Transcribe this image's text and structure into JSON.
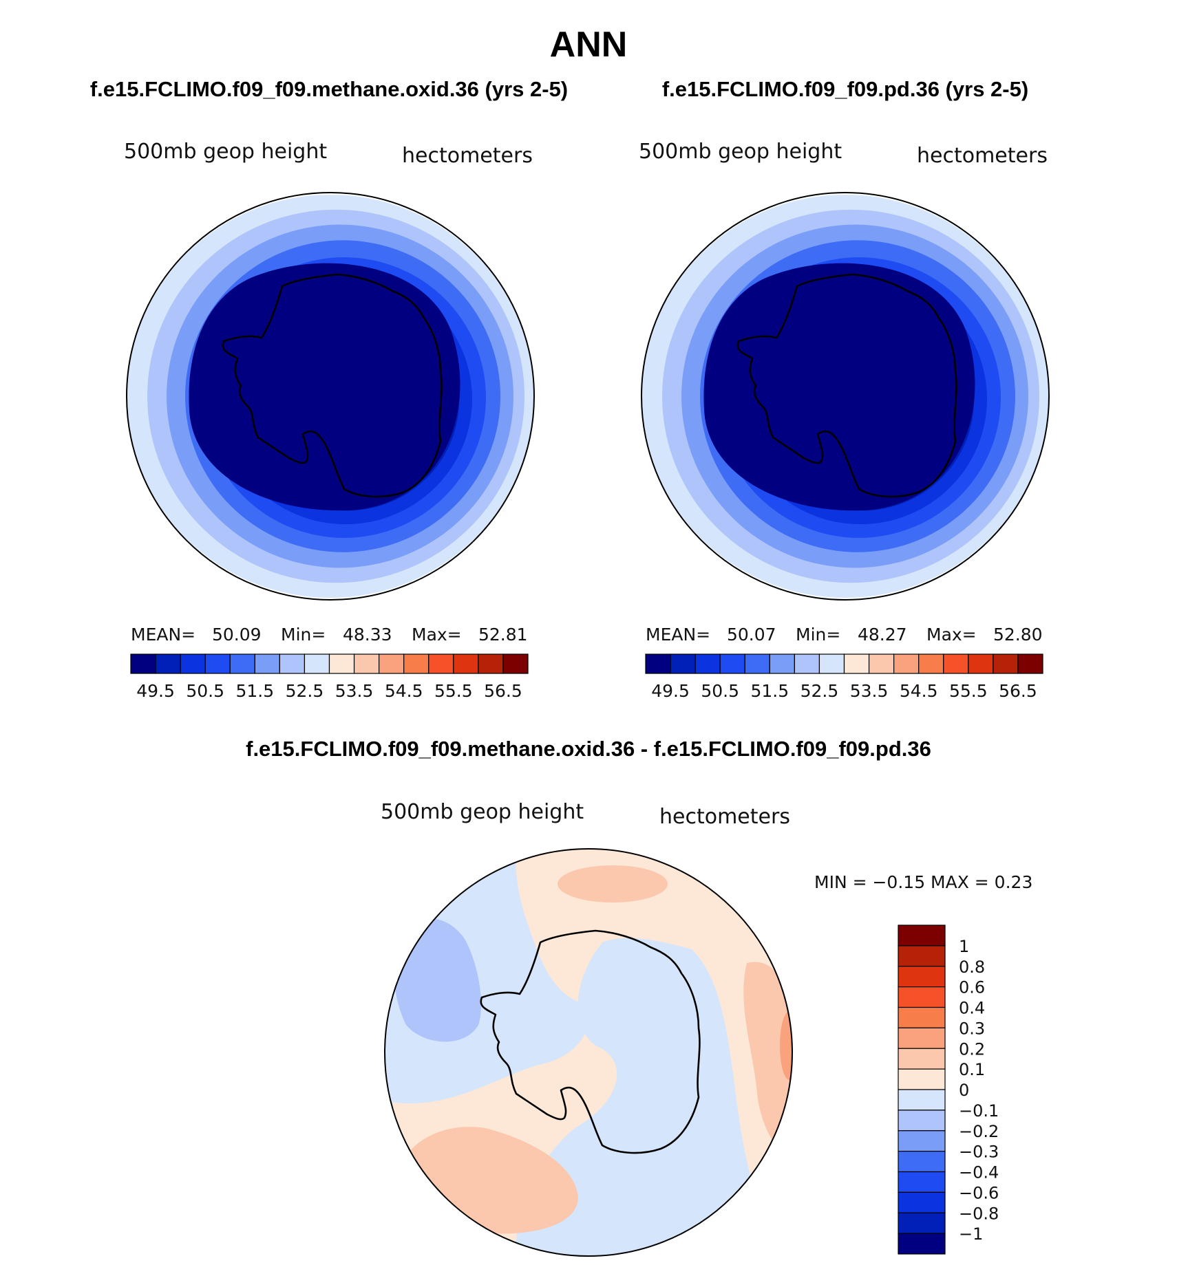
{
  "title": "ANN",
  "colors": {
    "levels": [
      "#000080",
      "#0020b8",
      "#0b33e0",
      "#1e4cf2",
      "#3e6cf4",
      "#7a9ef8",
      "#aec4fa",
      "#d5e5fb",
      "#fde8d8",
      "#fbc8ae",
      "#f9a27d",
      "#f77d4a",
      "#f6522a",
      "#de3410",
      "#b62208",
      "#7d0000"
    ]
  },
  "panels": [
    {
      "case_title": "f.e15.FCLIMO.f09_f09.methane.oxid.36 (yrs 2-5)",
      "variable": "500mb  geop  height",
      "units": "hectometers",
      "stats": {
        "mean_label": "MEAN=",
        "mean": "50.09",
        "min_label": "Min=",
        "min": "48.33",
        "max_label": "Max=",
        "max": "52.81"
      }
    },
    {
      "case_title": "f.e15.FCLIMO.f09_f09.pd.36 (yrs 2-5)",
      "variable": "500mb  geop  height",
      "units": "hectometers",
      "stats": {
        "mean_label": "MEAN=",
        "mean": "50.07",
        "min_label": "Min=",
        "min": "48.27",
        "max_label": "Max=",
        "max": "52.80"
      }
    }
  ],
  "colorbar_ticks": [
    "49.5",
    "50.5",
    "51.5",
    "52.5",
    "53.5",
    "54.5",
    "55.5",
    "56.5"
  ],
  "diff": {
    "title": "f.e15.FCLIMO.f09_f09.methane.oxid.36 - f.e15.FCLIMO.f09_f09.pd.36",
    "variable": "500mb  geop  height",
    "units": "hectometers",
    "minmax": "MIN =   −0.15  MAX =     0.23",
    "levels": [
      "1",
      "0.8",
      "0.6",
      "0.4",
      "0.3",
      "0.2",
      "0.1",
      "0",
      "−0.1",
      "−0.2",
      "−0.3",
      "−0.4",
      "−0.6",
      "−0.8",
      "−1"
    ]
  },
  "chart_data": [
    {
      "type": "heatmap",
      "projection": "polar-stereographic (southern hemisphere)",
      "title": "f.e15.FCLIMO.f09_f09.methane.oxid.36 (yrs 2-5)",
      "variable": "500mb geop height",
      "units": "hectometers",
      "mean": 50.09,
      "min": 48.33,
      "max": 52.81,
      "contour_levels": [
        49,
        49.5,
        50,
        50.5,
        51,
        51.5,
        52,
        52.5,
        53,
        53.5,
        54,
        54.5,
        55,
        55.5,
        56,
        56.5
      ]
    },
    {
      "type": "heatmap",
      "projection": "polar-stereographic (southern hemisphere)",
      "title": "f.e15.FCLIMO.f09_f09.pd.36 (yrs 2-5)",
      "variable": "500mb geop height",
      "units": "hectometers",
      "mean": 50.07,
      "min": 48.27,
      "max": 52.8,
      "contour_levels": [
        49,
        49.5,
        50,
        50.5,
        51,
        51.5,
        52,
        52.5,
        53,
        53.5,
        54,
        54.5,
        55,
        55.5,
        56,
        56.5
      ]
    },
    {
      "type": "heatmap",
      "projection": "polar-stereographic (southern hemisphere)",
      "title": "f.e15.FCLIMO.f09_f09.methane.oxid.36 - f.e15.FCLIMO.f09_f09.pd.36",
      "variable": "500mb geop height",
      "units": "hectometers",
      "min": -0.15,
      "max": 0.23,
      "contour_levels": [
        -1,
        -0.8,
        -0.6,
        -0.4,
        -0.3,
        -0.2,
        -0.1,
        0,
        0.1,
        0.2,
        0.3,
        0.4,
        0.6,
        0.8,
        1
      ]
    }
  ]
}
